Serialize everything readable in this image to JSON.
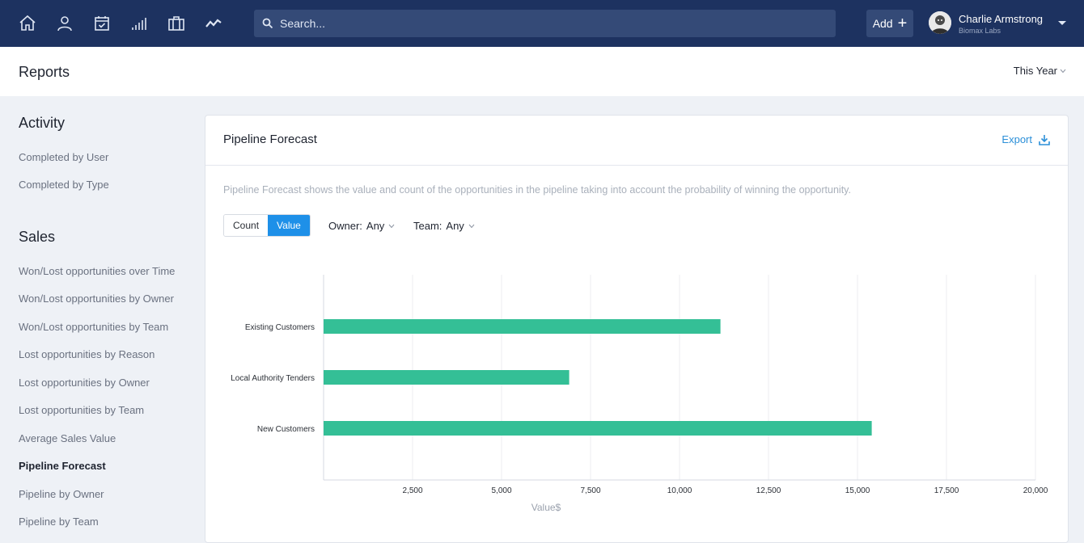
{
  "nav": {
    "icons": [
      "home-icon",
      "user-icon",
      "calendar-icon",
      "signal-bars-icon",
      "briefcase-icon",
      "activity-icon"
    ],
    "search_placeholder": "Search...",
    "add_label": "Add",
    "user_name": "Charlie Armstrong",
    "user_company": "Biomax Labs"
  },
  "header": {
    "title": "Reports",
    "range": "This Year"
  },
  "sidebar": {
    "activity_title": "Activity",
    "activity_items": [
      "Completed by User",
      "Completed by Type"
    ],
    "sales_title": "Sales",
    "sales_items": [
      "Won/Lost opportunities over Time",
      "Won/Lost opportunities by Owner",
      "Won/Lost opportunities by Team",
      "Lost opportunities by Reason",
      "Lost opportunities by Owner",
      "Lost opportunities by Team",
      "Average Sales Value",
      "Pipeline Forecast",
      "Pipeline by Owner",
      "Pipeline by Team"
    ],
    "active_item": "Pipeline Forecast"
  },
  "report": {
    "title": "Pipeline Forecast",
    "export_label": "Export",
    "description": "Pipeline Forecast shows the value and count of the opportunities in the pipeline taking into account the probability of winning the opportunity.",
    "toggle": {
      "count": "Count",
      "value": "Value",
      "selected": "Value"
    },
    "owner_label": "Owner:",
    "owner_value": "Any",
    "team_label": "Team:",
    "team_value": "Any"
  },
  "chart_data": {
    "type": "bar",
    "orientation": "horizontal",
    "categories": [
      "Existing Customers",
      "Local Authority Tenders",
      "New Customers"
    ],
    "values": [
      11150,
      6900,
      15400
    ],
    "xlabel": "Value$",
    "ylabel": "",
    "xlim": [
      0,
      20000
    ],
    "xticks": [
      "2,500",
      "5,000",
      "7,500",
      "10,000",
      "12,500",
      "15,000",
      "17,500",
      "20,000"
    ],
    "grid": true,
    "bar_color": "#34bf96"
  }
}
